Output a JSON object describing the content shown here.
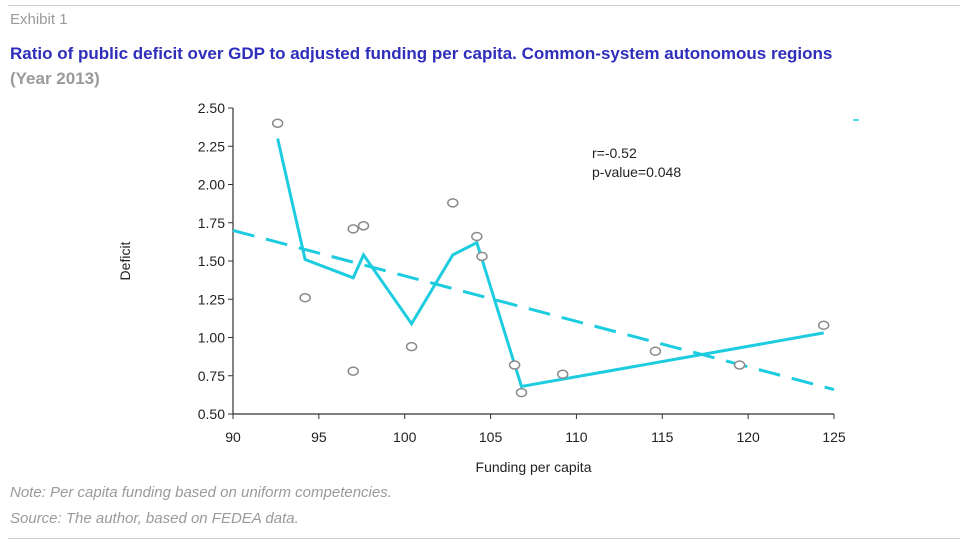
{
  "header": {
    "exhibit": "Exhibit 1",
    "title": "Ratio of public deficit over GDP to adjusted funding per capita. Common-system autonomous regions",
    "subtitle": "(Year 2013)"
  },
  "footer": {
    "note": "Note: Per capita funding based on uniform competencies.",
    "source": "Source: The author, based on FEDEA data."
  },
  "colors": {
    "title": "#2e2ebb",
    "muted": "#9a9a9a",
    "series_line": "#1ecce0",
    "trend_line": "#1ecce0",
    "marker": "#8a8a8a"
  },
  "chart_data": {
    "type": "scatter",
    "title": "",
    "xlabel": "Funding per capita",
    "ylabel": "Deficit",
    "xlim": [
      90,
      125
    ],
    "ylim": [
      0.5,
      2.5
    ],
    "x_ticks": [
      "90",
      "95",
      "100",
      "105",
      "110",
      "115",
      "120",
      "125"
    ],
    "y_ticks": [
      "2.50",
      "2.25",
      "2.00",
      "1.75",
      "1.50",
      "1.25",
      "1.00",
      "0.75",
      "0.50"
    ],
    "grid": false,
    "annotations": [
      "r=-0.52",
      "p-value=0.048"
    ],
    "series": [
      {
        "kind": "points",
        "x": [
          92.6,
          94.2,
          97.0,
          97.6,
          97.0,
          100.4,
          102.8,
          104.2,
          104.5,
          106.4,
          106.8,
          109.2,
          114.6,
          119.5,
          124.4
        ],
        "y": [
          2.4,
          1.26,
          1.71,
          1.73,
          0.78,
          0.94,
          1.88,
          1.66,
          1.53,
          0.82,
          0.64,
          0.76,
          0.91,
          0.82,
          1.08
        ]
      },
      {
        "kind": "line",
        "x": [
          92.6,
          94.2,
          97.0,
          97.6,
          100.4,
          102.8,
          104.2,
          106.8,
          124.4
        ],
        "y": [
          2.3,
          1.51,
          1.39,
          1.54,
          1.09,
          1.54,
          1.62,
          0.68,
          1.03
        ]
      },
      {
        "kind": "trend",
        "style": "dashed",
        "x": [
          90.0,
          125.0
        ],
        "y": [
          1.7,
          0.66
        ]
      }
    ]
  }
}
